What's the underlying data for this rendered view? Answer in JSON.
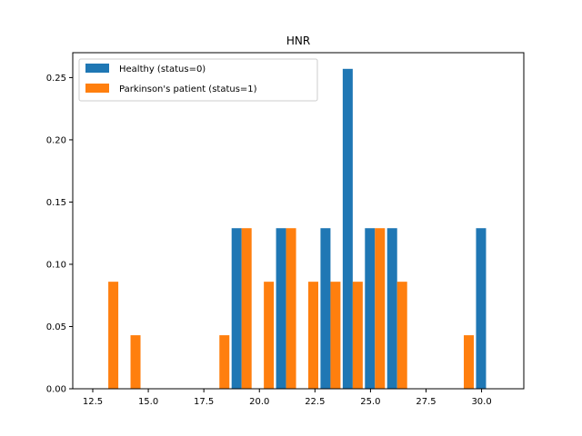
{
  "chart_data": {
    "type": "bar",
    "title": "HNR",
    "xlabel": "",
    "ylabel": "",
    "xlim": [
      11.6,
      31.9
    ],
    "ylim": [
      0,
      0.27
    ],
    "xticks": [
      "12.5",
      "15.0",
      "17.5",
      "20.0",
      "22.5",
      "25.0",
      "27.5",
      "30.0"
    ],
    "xtick_values": [
      12.5,
      15.0,
      17.5,
      20.0,
      22.5,
      25.0,
      27.5,
      30.0
    ],
    "yticks": [
      "0.00",
      "0.05",
      "0.10",
      "0.15",
      "0.20",
      "0.25"
    ],
    "ytick_values": [
      0.0,
      0.05,
      0.1,
      0.15,
      0.2,
      0.25
    ],
    "grid": false,
    "legend_position": "top-left",
    "bin_centers": [
      13.2,
      14.2,
      15.2,
      16.2,
      17.2,
      18.2,
      19.2,
      20.2,
      21.2,
      22.2,
      23.2,
      24.2,
      25.2,
      26.2,
      27.2,
      28.2,
      29.2,
      30.2
    ],
    "bin_width": 0.9,
    "series": [
      {
        "name": "Healthy (status=0)",
        "color": "#1f77b4",
        "values": [
          0,
          0,
          0,
          0,
          0,
          0,
          0.129,
          0,
          0.129,
          0,
          0.129,
          0.257,
          0.129,
          0.129,
          0,
          0,
          0,
          0.129
        ]
      },
      {
        "name": "Parkinson's patient (status=1)",
        "color": "#ff7f0e",
        "values": [
          0.086,
          0.043,
          0,
          0,
          0,
          0.043,
          0.129,
          0.086,
          0.129,
          0.086,
          0.086,
          0.086,
          0.129,
          0.086,
          0,
          0,
          0.043,
          0
        ]
      }
    ]
  }
}
